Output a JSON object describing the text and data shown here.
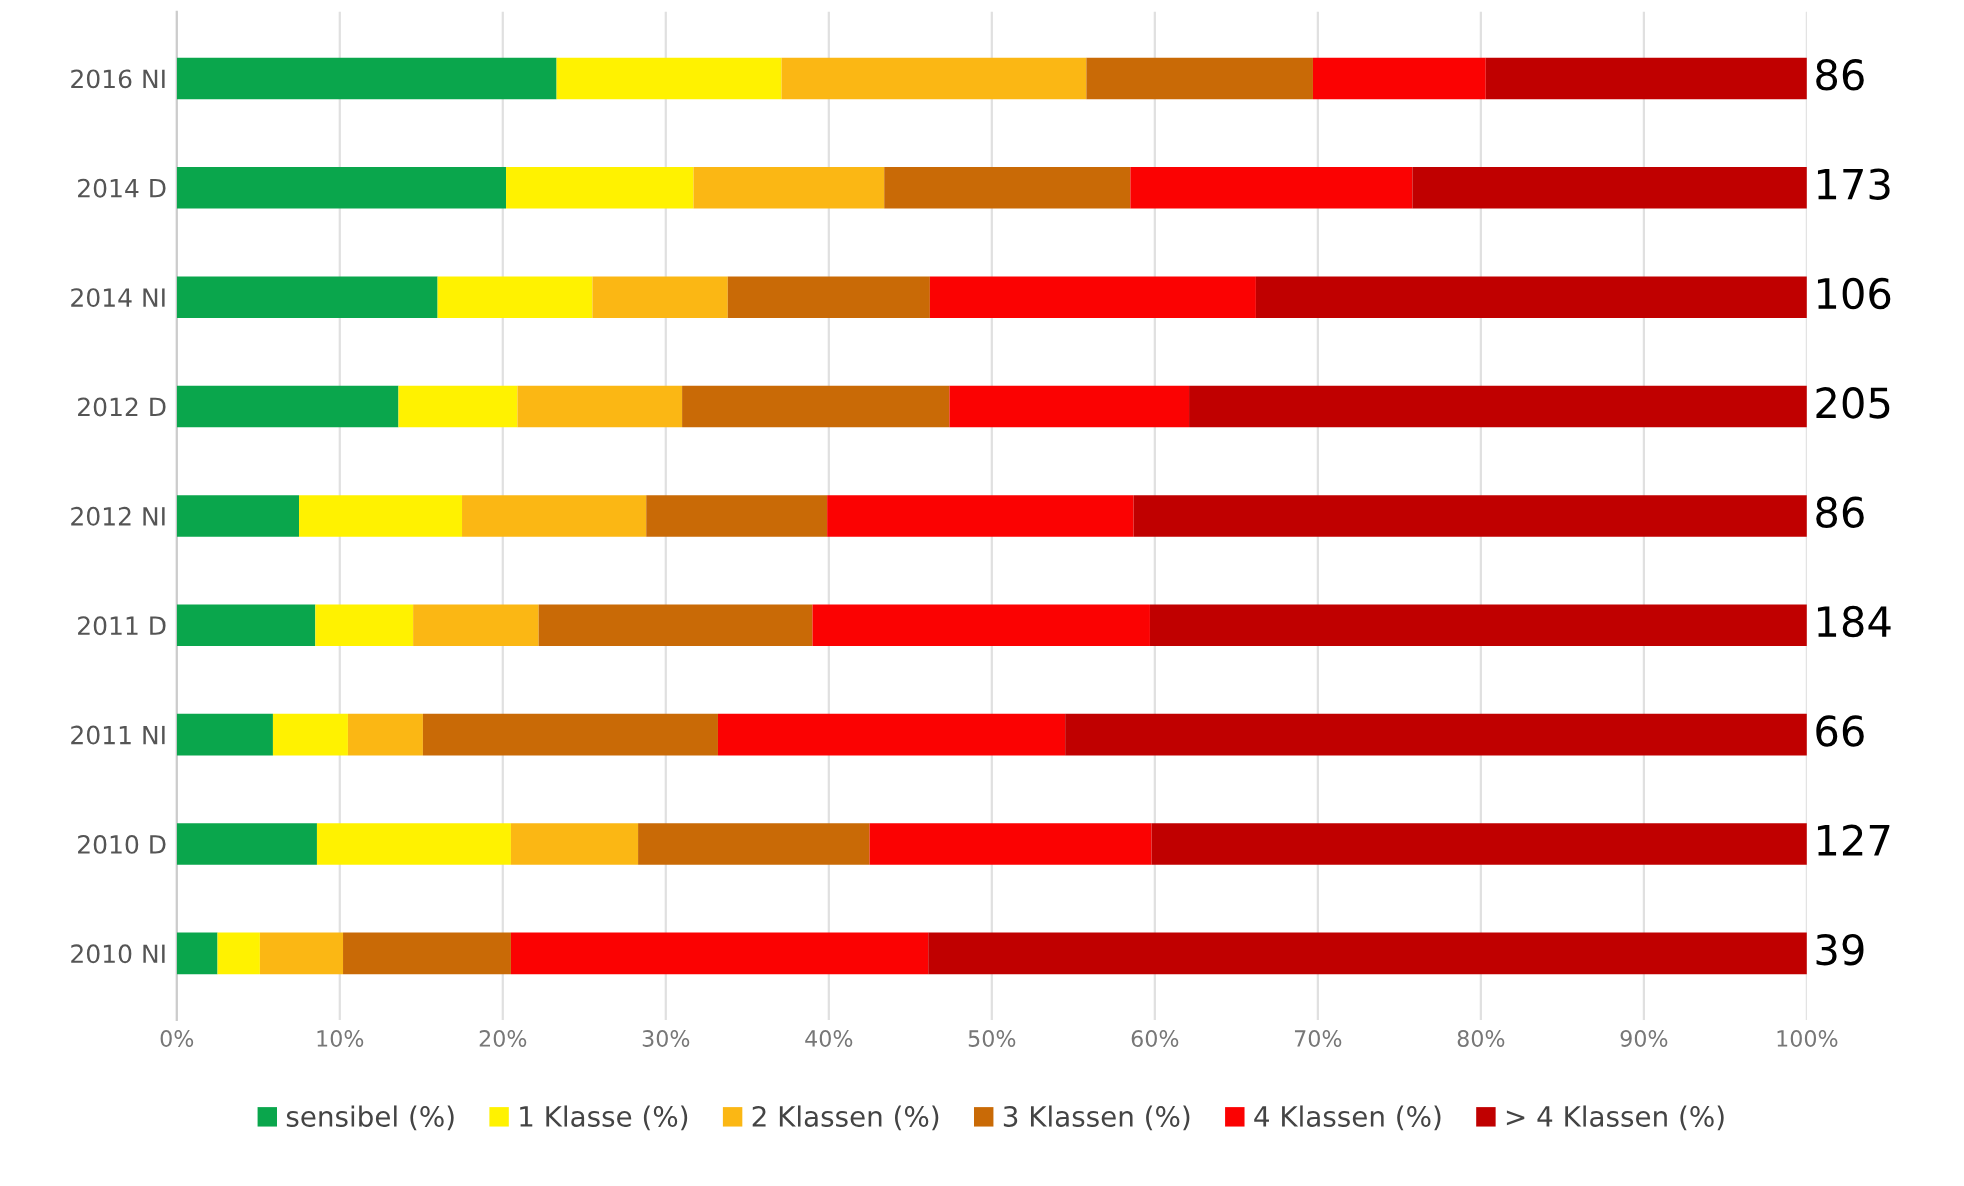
{
  "chart_data": {
    "type": "bar",
    "orientation": "horizontal",
    "stacked": true,
    "categories": [
      "2016 NI",
      "2014 D",
      "2014 NI",
      "2012 D",
      "2012 NI",
      "2011 D",
      "2011 NI",
      "2010 D",
      "2010 NI"
    ],
    "series": [
      {
        "name": "sensibel (%)",
        "color": "#0aa64c",
        "values": [
          23.3,
          20.2,
          16.0,
          13.6,
          7.5,
          8.5,
          5.9,
          8.6,
          2.5
        ]
      },
      {
        "name": "1 Klasse (%)",
        "color": "#fff200",
        "values": [
          13.8,
          11.5,
          9.5,
          7.3,
          10.0,
          6.0,
          4.6,
          11.9,
          2.6
        ]
      },
      {
        "name": "2 Klassen (%)",
        "color": "#fbb714",
        "values": [
          18.7,
          11.7,
          8.3,
          10.1,
          11.3,
          7.7,
          4.6,
          7.8,
          5.1
        ]
      },
      {
        "name": "3 Klassen (%)",
        "color": "#c96a06",
        "values": [
          13.9,
          15.1,
          12.4,
          16.4,
          11.1,
          16.8,
          18.1,
          14.2,
          10.3
        ]
      },
      {
        "name": "4 Klassen (%)",
        "color": "#fb0202",
        "values": [
          10.6,
          17.3,
          20.0,
          14.7,
          18.8,
          20.7,
          21.3,
          17.3,
          25.6
        ]
      },
      {
        "name": "> 4 Klassen (%)",
        "color": "#c00000",
        "values": [
          19.7,
          24.2,
          33.8,
          37.9,
          41.3,
          40.3,
          45.5,
          40.2,
          53.9
        ]
      }
    ],
    "annotations": [
      "86",
      "173",
      "106",
      "205",
      "86",
      "184",
      "66",
      "127",
      "39"
    ],
    "xlim": [
      0,
      100
    ],
    "xticks": [
      {
        "value": 0,
        "label": "0%"
      },
      {
        "value": 10,
        "label": "10%"
      },
      {
        "value": 20,
        "label": "20%"
      },
      {
        "value": 30,
        "label": "30%"
      },
      {
        "value": 40,
        "label": "40%"
      },
      {
        "value": 50,
        "label": "50%"
      },
      {
        "value": 60,
        "label": "60%"
      },
      {
        "value": 70,
        "label": "70%"
      },
      {
        "value": 80,
        "label": "80%"
      },
      {
        "value": 90,
        "label": "90%"
      },
      {
        "value": 100,
        "label": "100%"
      }
    ],
    "grid": "x",
    "legend": "bottom"
  }
}
